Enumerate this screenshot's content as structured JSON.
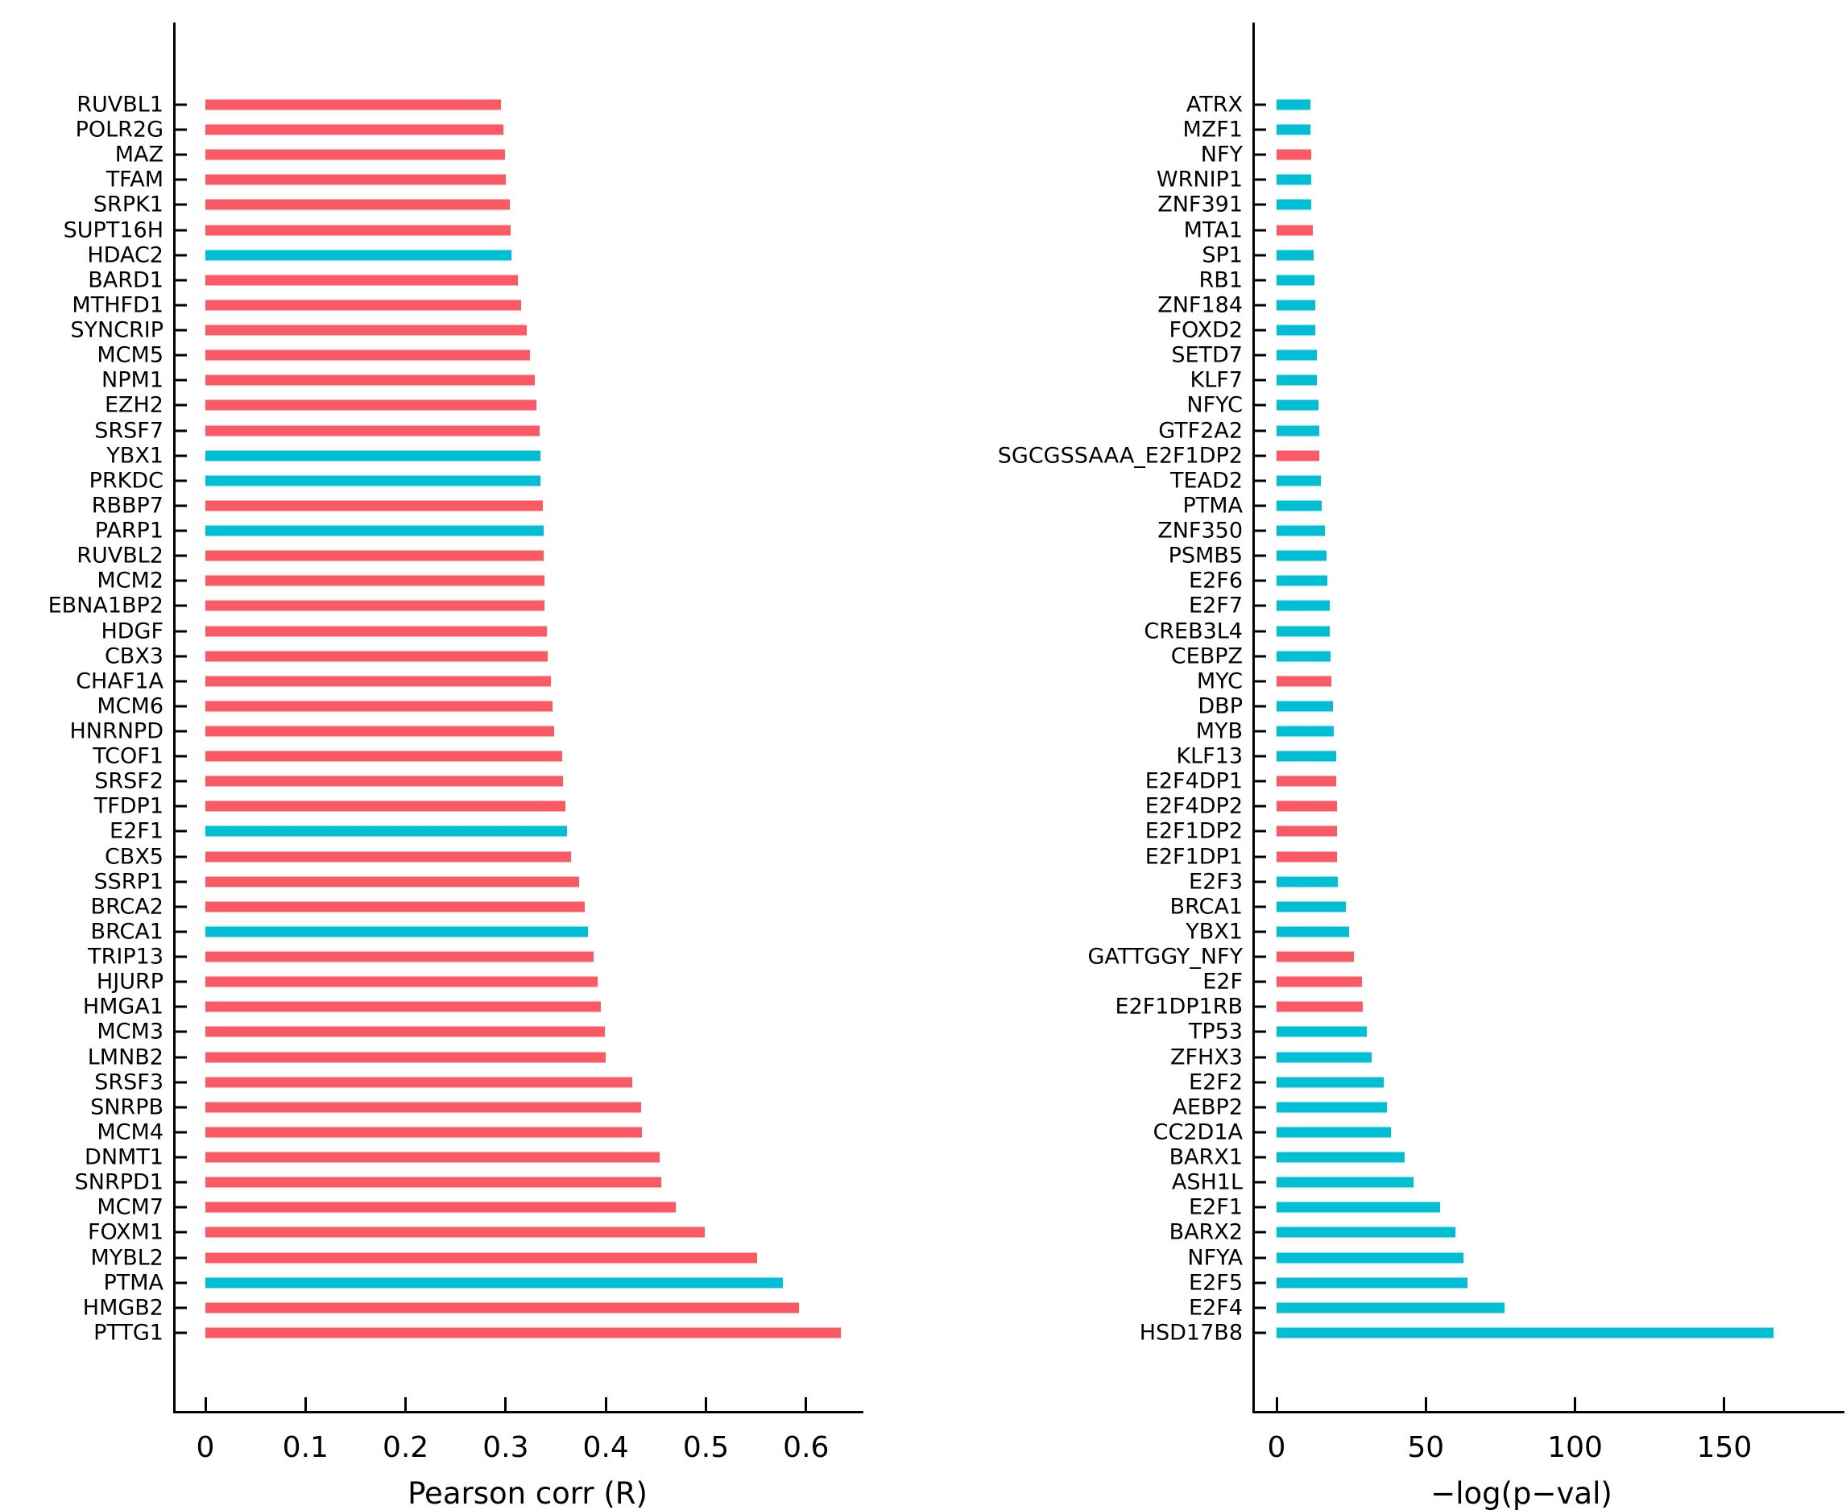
{
  "figure": {
    "background": "#ffffff",
    "axis_color": "#000000",
    "palette": {
      "red": "#FB5A64",
      "cyan": "#00BFD4"
    }
  },
  "chart_data": [
    {
      "id": "pearson",
      "type": "bar",
      "orientation": "horizontal",
      "xlabel": "Pearson corr (R)",
      "grid": false,
      "legend": null,
      "xlim": [
        0,
        0.66
      ],
      "x_ticks": [
        {
          "value": 0,
          "label": "0"
        },
        {
          "value": 0.1,
          "label": "0.1"
        },
        {
          "value": 0.2,
          "label": "0.2"
        },
        {
          "value": 0.3,
          "label": "0.3"
        },
        {
          "value": 0.4,
          "label": "0.4"
        },
        {
          "value": 0.5,
          "label": "0.5"
        },
        {
          "value": 0.6,
          "label": "0.6"
        }
      ],
      "bars": [
        {
          "label": "RUVBL1",
          "value": 0.295,
          "color": "red"
        },
        {
          "label": "POLR2G",
          "value": 0.298,
          "color": "red"
        },
        {
          "label": "MAZ",
          "value": 0.299,
          "color": "red"
        },
        {
          "label": "TFAM",
          "value": 0.3,
          "color": "red"
        },
        {
          "label": "SRPK1",
          "value": 0.304,
          "color": "red"
        },
        {
          "label": "SUPT16H",
          "value": 0.305,
          "color": "red"
        },
        {
          "label": "HDAC2",
          "value": 0.306,
          "color": "cyan"
        },
        {
          "label": "BARD1",
          "value": 0.312,
          "color": "red"
        },
        {
          "label": "MTHFD1",
          "value": 0.315,
          "color": "red"
        },
        {
          "label": "SYNCRIP",
          "value": 0.321,
          "color": "red"
        },
        {
          "label": "MCM5",
          "value": 0.324,
          "color": "red"
        },
        {
          "label": "NPM1",
          "value": 0.329,
          "color": "red"
        },
        {
          "label": "EZH2",
          "value": 0.331,
          "color": "red"
        },
        {
          "label": "SRSF7",
          "value": 0.334,
          "color": "red"
        },
        {
          "label": "YBX1",
          "value": 0.335,
          "color": "cyan"
        },
        {
          "label": "PRKDC",
          "value": 0.335,
          "color": "cyan"
        },
        {
          "label": "RBBP7",
          "value": 0.337,
          "color": "red"
        },
        {
          "label": "PARP1",
          "value": 0.338,
          "color": "cyan"
        },
        {
          "label": "RUVBL2",
          "value": 0.338,
          "color": "red"
        },
        {
          "label": "MCM2",
          "value": 0.339,
          "color": "red"
        },
        {
          "label": "EBNA1BP2",
          "value": 0.339,
          "color": "red"
        },
        {
          "label": "HDGF",
          "value": 0.341,
          "color": "red"
        },
        {
          "label": "CBX3",
          "value": 0.342,
          "color": "red"
        },
        {
          "label": "CHAF1A",
          "value": 0.345,
          "color": "red"
        },
        {
          "label": "MCM6",
          "value": 0.347,
          "color": "red"
        },
        {
          "label": "HNRNPD",
          "value": 0.348,
          "color": "red"
        },
        {
          "label": "TCOF1",
          "value": 0.356,
          "color": "red"
        },
        {
          "label": "SRSF2",
          "value": 0.357,
          "color": "red"
        },
        {
          "label": "TFDP1",
          "value": 0.36,
          "color": "red"
        },
        {
          "label": "E2F1",
          "value": 0.361,
          "color": "cyan"
        },
        {
          "label": "CBX5",
          "value": 0.365,
          "color": "red"
        },
        {
          "label": "SSRP1",
          "value": 0.373,
          "color": "red"
        },
        {
          "label": "BRCA2",
          "value": 0.379,
          "color": "red"
        },
        {
          "label": "BRCA1",
          "value": 0.382,
          "color": "cyan"
        },
        {
          "label": "TRIP13",
          "value": 0.388,
          "color": "red"
        },
        {
          "label": "HJURP",
          "value": 0.392,
          "color": "red"
        },
        {
          "label": "HMGA1",
          "value": 0.395,
          "color": "red"
        },
        {
          "label": "MCM3",
          "value": 0.399,
          "color": "red"
        },
        {
          "label": "LMNB2",
          "value": 0.4,
          "color": "red"
        },
        {
          "label": "SRSF3",
          "value": 0.426,
          "color": "red"
        },
        {
          "label": "SNRPB",
          "value": 0.435,
          "color": "red"
        },
        {
          "label": "MCM4",
          "value": 0.436,
          "color": "red"
        },
        {
          "label": "DNMT1",
          "value": 0.454,
          "color": "red"
        },
        {
          "label": "SNRPD1",
          "value": 0.455,
          "color": "red"
        },
        {
          "label": "MCM7",
          "value": 0.47,
          "color": "red"
        },
        {
          "label": "FOXM1",
          "value": 0.499,
          "color": "red"
        },
        {
          "label": "MYBL2",
          "value": 0.551,
          "color": "red"
        },
        {
          "label": "PTMA",
          "value": 0.577,
          "color": "cyan"
        },
        {
          "label": "HMGB2",
          "value": 0.593,
          "color": "red"
        },
        {
          "label": "PTTG1",
          "value": 0.635,
          "color": "red"
        }
      ]
    },
    {
      "id": "pvalue",
      "type": "bar",
      "orientation": "horizontal",
      "xlabel": "−log(p−val)",
      "grid": false,
      "legend": null,
      "xlim": [
        0,
        190
      ],
      "x_ticks": [
        {
          "value": 0,
          "label": "0"
        },
        {
          "value": 50,
          "label": "50"
        },
        {
          "value": 100,
          "label": "100"
        },
        {
          "value": 150,
          "label": "150"
        }
      ],
      "bars": [
        {
          "label": "ATRX",
          "value": 11.3,
          "color": "cyan"
        },
        {
          "label": "MZF1",
          "value": 11.3,
          "color": "cyan"
        },
        {
          "label": "NFY",
          "value": 11.6,
          "color": "red"
        },
        {
          "label": "WRNIP1",
          "value": 11.6,
          "color": "cyan"
        },
        {
          "label": "ZNF391",
          "value": 11.7,
          "color": "cyan"
        },
        {
          "label": "MTA1",
          "value": 12.1,
          "color": "red"
        },
        {
          "label": "SP1",
          "value": 12.3,
          "color": "cyan"
        },
        {
          "label": "RB1",
          "value": 12.8,
          "color": "cyan"
        },
        {
          "label": "ZNF184",
          "value": 13.0,
          "color": "cyan"
        },
        {
          "label": "FOXD2",
          "value": 13.0,
          "color": "cyan"
        },
        {
          "label": "SETD7",
          "value": 13.4,
          "color": "cyan"
        },
        {
          "label": "KLF7",
          "value": 13.6,
          "color": "cyan"
        },
        {
          "label": "NFYC",
          "value": 13.9,
          "color": "cyan"
        },
        {
          "label": "GTF2A2",
          "value": 14.3,
          "color": "cyan"
        },
        {
          "label": "SGCGSSAAA_E2F1DP2",
          "value": 14.4,
          "color": "red"
        },
        {
          "label": "TEAD2",
          "value": 14.9,
          "color": "cyan"
        },
        {
          "label": "PTMA",
          "value": 15.1,
          "color": "cyan"
        },
        {
          "label": "ZNF350",
          "value": 16.1,
          "color": "cyan"
        },
        {
          "label": "PSMB5",
          "value": 16.8,
          "color": "cyan"
        },
        {
          "label": "E2F6",
          "value": 17.0,
          "color": "cyan"
        },
        {
          "label": "E2F7",
          "value": 17.7,
          "color": "cyan"
        },
        {
          "label": "CREB3L4",
          "value": 17.8,
          "color": "cyan"
        },
        {
          "label": "CEBPZ",
          "value": 18.0,
          "color": "cyan"
        },
        {
          "label": "MYC",
          "value": 18.4,
          "color": "red"
        },
        {
          "label": "DBP",
          "value": 19.0,
          "color": "cyan"
        },
        {
          "label": "MYB",
          "value": 19.2,
          "color": "cyan"
        },
        {
          "label": "KLF13",
          "value": 20.0,
          "color": "cyan"
        },
        {
          "label": "E2F4DP1",
          "value": 20.1,
          "color": "red"
        },
        {
          "label": "E2F4DP2",
          "value": 20.2,
          "color": "red"
        },
        {
          "label": "E2F1DP2",
          "value": 20.2,
          "color": "red"
        },
        {
          "label": "E2F1DP1",
          "value": 20.3,
          "color": "red"
        },
        {
          "label": "E2F3",
          "value": 20.6,
          "color": "cyan"
        },
        {
          "label": "BRCA1",
          "value": 23.1,
          "color": "cyan"
        },
        {
          "label": "YBX1",
          "value": 24.4,
          "color": "cyan"
        },
        {
          "label": "GATTGGY_NFY",
          "value": 25.9,
          "color": "red"
        },
        {
          "label": "E2F",
          "value": 28.7,
          "color": "red"
        },
        {
          "label": "E2F1DP1RB",
          "value": 28.9,
          "color": "red"
        },
        {
          "label": "TP53",
          "value": 30.2,
          "color": "cyan"
        },
        {
          "label": "ZFHX3",
          "value": 31.9,
          "color": "cyan"
        },
        {
          "label": "E2F2",
          "value": 35.9,
          "color": "cyan"
        },
        {
          "label": "AEBP2",
          "value": 37.0,
          "color": "cyan"
        },
        {
          "label": "CC2D1A",
          "value": 38.2,
          "color": "cyan"
        },
        {
          "label": "BARX1",
          "value": 42.8,
          "color": "cyan"
        },
        {
          "label": "ASH1L",
          "value": 46.0,
          "color": "cyan"
        },
        {
          "label": "E2F1",
          "value": 54.7,
          "color": "cyan"
        },
        {
          "label": "BARX2",
          "value": 59.9,
          "color": "cyan"
        },
        {
          "label": "NFYA",
          "value": 62.6,
          "color": "cyan"
        },
        {
          "label": "E2F5",
          "value": 63.9,
          "color": "cyan"
        },
        {
          "label": "E2F4",
          "value": 76.3,
          "color": "cyan"
        },
        {
          "label": "HSD17B8",
          "value": 166.6,
          "color": "cyan"
        }
      ]
    }
  ]
}
